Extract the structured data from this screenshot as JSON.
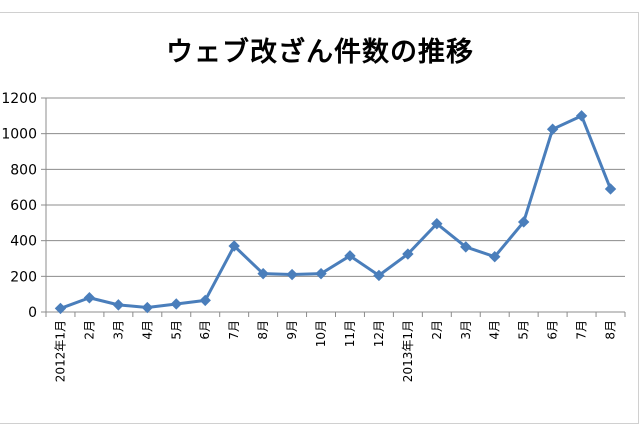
{
  "chart_data": {
    "type": "line",
    "title": "ウェブ改ざん件数の推移",
    "xlabel": "",
    "ylabel": "",
    "ylim": [
      0,
      1200
    ],
    "yticks": [
      0,
      200,
      400,
      600,
      800,
      1000,
      1200
    ],
    "grid": true,
    "categories": [
      "2012年1月",
      "2月",
      "3月",
      "4月",
      "5月",
      "6月",
      "7月",
      "8月",
      "9月",
      "10月",
      "11月",
      "12月",
      "2013年1月",
      "2月",
      "3月",
      "4月",
      "5月",
      "6月",
      "7月",
      "8月"
    ],
    "series": [
      {
        "values": [
          20,
          80,
          40,
          25,
          45,
          65,
          370,
          215,
          210,
          215,
          315,
          205,
          325,
          495,
          365,
          310,
          505,
          1025,
          1100,
          690
        ],
        "color": "#4a7ebb"
      }
    ]
  }
}
